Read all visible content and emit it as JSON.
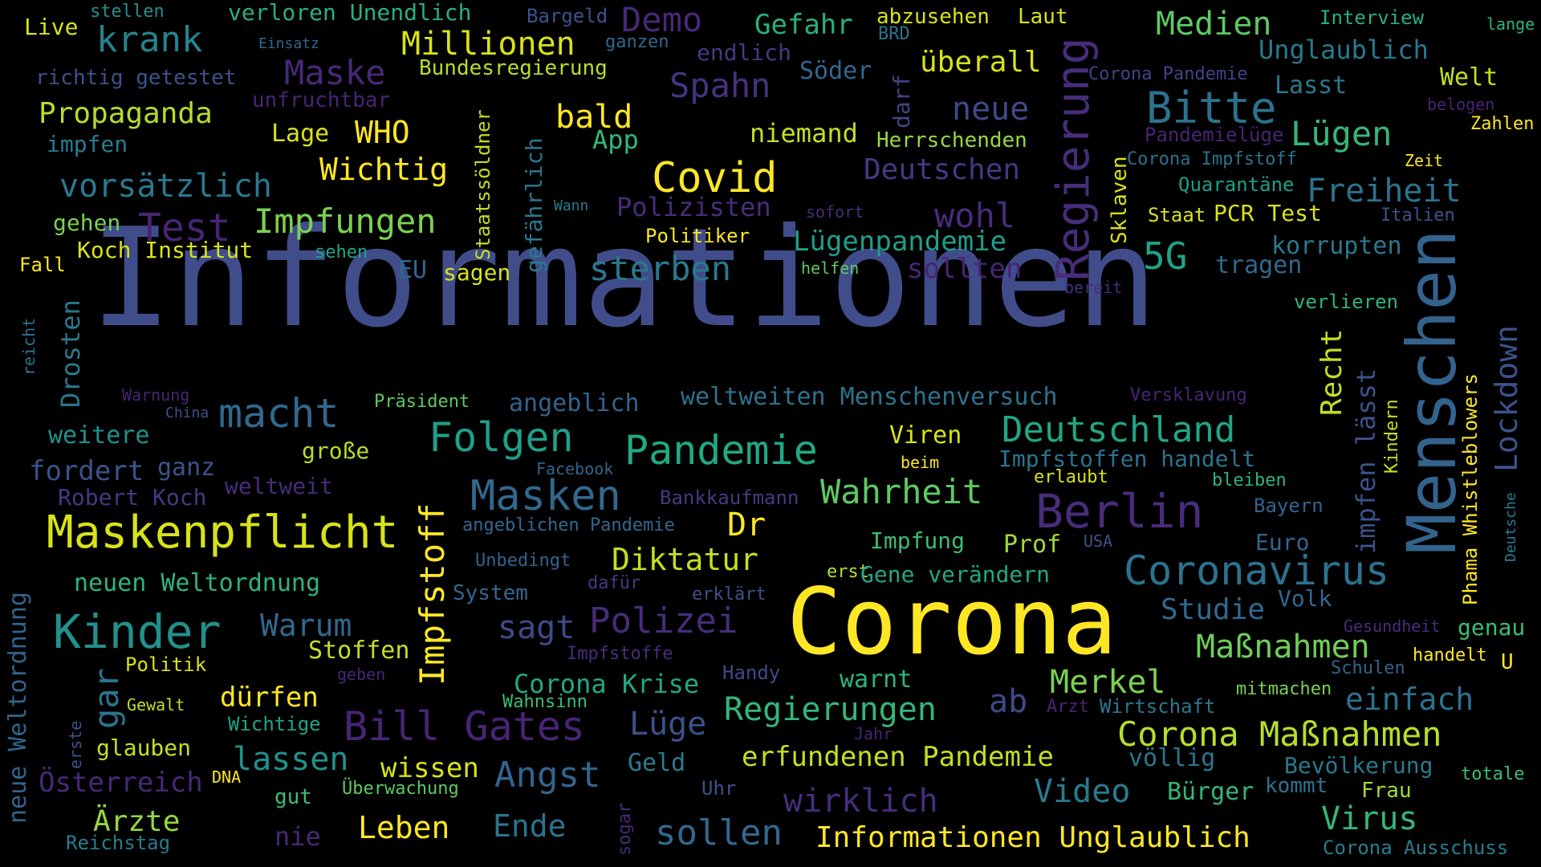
{
  "wordcloud": {
    "words": [
      {
        "text": "Informationen",
        "color": "#404d8a"
      },
      {
        "text": "Corona",
        "color": "#fde725"
      },
      {
        "text": "Menschen",
        "color": "#33638d"
      },
      {
        "text": "Maskenpflicht",
        "color": "#d8e219"
      },
      {
        "text": "Regierung",
        "color": "#472d7b"
      },
      {
        "text": "Kinder",
        "color": "#21918c"
      },
      {
        "text": "Bitte",
        "color": "#2c728e"
      },
      {
        "text": "Coronavirus",
        "color": "#2c728e"
      },
      {
        "text": "Berlin",
        "color": "#472d7b"
      },
      {
        "text": "Bill Gates",
        "color": "#482475"
      },
      {
        "text": "Deutschland",
        "color": "#21a685"
      },
      {
        "text": "Pandemie",
        "color": "#22a884"
      },
      {
        "text": "Folgen",
        "color": "#1f9e89"
      },
      {
        "text": "Masken",
        "color": "#31688e"
      },
      {
        "text": "Covid",
        "color": "#fde725"
      },
      {
        "text": "Impfstoff",
        "color": "#fde725"
      },
      {
        "text": "macht",
        "color": "#31688e"
      },
      {
        "text": "Lockdown",
        "color": "#3b528b"
      },
      {
        "text": "Corona Maßnahmen",
        "color": "#b5de2b"
      },
      {
        "text": "Impfungen",
        "color": "#7ad151"
      },
      {
        "text": "Maske",
        "color": "#482878"
      },
      {
        "text": "Informationen Unglaublich",
        "color": "#fde725"
      },
      {
        "text": "Millionen",
        "color": "#d8e219"
      },
      {
        "text": "krank",
        "color": "#26828e"
      },
      {
        "text": "Wahrheit",
        "color": "#5ec962"
      },
      {
        "text": "Regierungen",
        "color": "#35b779"
      },
      {
        "text": "Maßnahmen",
        "color": "#6ece58"
      },
      {
        "text": "Polizei",
        "color": "#472d7b"
      },
      {
        "text": "sterben",
        "color": "#2a788e"
      },
      {
        "text": "Freiheit",
        "color": "#2c728e"
      },
      {
        "text": "Lügen",
        "color": "#35b779"
      },
      {
        "text": "Demo",
        "color": "#482878"
      },
      {
        "text": "Gefahr",
        "color": "#29af7f"
      },
      {
        "text": "Medien",
        "color": "#5ec962"
      },
      {
        "text": "Spahn",
        "color": "#46327e"
      },
      {
        "text": "neue",
        "color": "#3e4a89"
      },
      {
        "text": "wohl",
        "color": "#472d7b"
      },
      {
        "text": "5G",
        "color": "#20a386"
      },
      {
        "text": "Test",
        "color": "#482475"
      },
      {
        "text": "vorsätzlich",
        "color": "#2a788e"
      },
      {
        "text": "Wichtig",
        "color": "#fde725"
      },
      {
        "text": "bald",
        "color": "#fde725"
      },
      {
        "text": "WHO",
        "color": "#fde725"
      },
      {
        "text": "Deutschen",
        "color": "#443983"
      },
      {
        "text": "Merkel",
        "color": "#7ad151"
      },
      {
        "text": "einfach",
        "color": "#2c728e"
      },
      {
        "text": "Virus",
        "color": "#35b779"
      },
      {
        "text": "Video",
        "color": "#287c8e"
      },
      {
        "text": "wirklich",
        "color": "#472d7b"
      },
      {
        "text": "sollen",
        "color": "#31688e"
      },
      {
        "text": "Angst",
        "color": "#33638d"
      },
      {
        "text": "Warum",
        "color": "#31688e"
      },
      {
        "text": "sagt",
        "color": "#3e4a89"
      },
      {
        "text": "Diktatur",
        "color": "#c2df23"
      },
      {
        "text": "Dr",
        "color": "#fde725"
      },
      {
        "text": "ab",
        "color": "#3e4a89"
      },
      {
        "text": "Lüge",
        "color": "#3b528b"
      },
      {
        "text": "lassen",
        "color": "#21918c"
      },
      {
        "text": "Ärzte",
        "color": "#95d840"
      },
      {
        "text": "Leben",
        "color": "#fde725"
      },
      {
        "text": "Ende",
        "color": "#2c728e"
      },
      {
        "text": "Österreich",
        "color": "#482878"
      },
      {
        "text": "Corona Krise",
        "color": "#22a884"
      },
      {
        "text": "erfundenen Pandemie",
        "color": "#c2df23"
      },
      {
        "text": "Studie",
        "color": "#31688e"
      },
      {
        "text": "Recht",
        "color": "#c2df23"
      },
      {
        "text": "impfen lässt",
        "color": "#3b528b"
      },
      {
        "text": "Propaganda",
        "color": "#b5de2b"
      },
      {
        "text": "Drosten",
        "color": "#2a788e"
      },
      {
        "text": "gar",
        "color": "#2c728e"
      },
      {
        "text": "neue Weltordnung",
        "color": "#33638d"
      },
      {
        "text": "Impfstoffen handelt",
        "color": "#2c728e"
      },
      {
        "text": "Lügenpandemie",
        "color": "#1f9e89"
      },
      {
        "text": "Polizisten",
        "color": "#472d7b"
      },
      {
        "text": "sollten",
        "color": "#482475"
      },
      {
        "text": "tragen",
        "color": "#31688e"
      },
      {
        "text": "korrupten",
        "color": "#2a788e"
      },
      {
        "text": "niemand",
        "color": "#c2df23"
      },
      {
        "text": "überall",
        "color": "#d8e219"
      },
      {
        "text": "Unglaublich",
        "color": "#2a788e"
      },
      {
        "text": "weltweiten Menschenversuch",
        "color": "#2c728e"
      },
      {
        "text": "Viren",
        "color": "#d8e219"
      },
      {
        "text": "Impfung",
        "color": "#3dbc74"
      },
      {
        "text": "Prof",
        "color": "#a0da39"
      },
      {
        "text": "angeblich",
        "color": "#33638d"
      },
      {
        "text": "Koch Institut",
        "color": "#d8e219"
      },
      {
        "text": "Lage",
        "color": "#d8e219"
      },
      {
        "text": "weitere",
        "color": "#21918c"
      },
      {
        "text": "fordert",
        "color": "#3b528b"
      },
      {
        "text": "ganz",
        "color": "#3b528b"
      },
      {
        "text": "große",
        "color": "#b5de2b"
      },
      {
        "text": "Robert Koch",
        "color": "#443983"
      },
      {
        "text": "weltweit",
        "color": "#472d7b"
      },
      {
        "text": "neuen Weltordnung",
        "color": "#2fb47c"
      },
      {
        "text": "Stoffen",
        "color": "#c2df23"
      },
      {
        "text": "dürfen",
        "color": "#fde725"
      },
      {
        "text": "glauben",
        "color": "#c2df23"
      },
      {
        "text": "wissen",
        "color": "#d8e219"
      },
      {
        "text": "Geld",
        "color": "#287c8e"
      },
      {
        "text": "warnt",
        "color": "#2fb47c"
      },
      {
        "text": "völlig",
        "color": "#2a788e"
      },
      {
        "text": "Bürger",
        "color": "#35b779"
      },
      {
        "text": "Bevölkerung",
        "color": "#2a788e"
      },
      {
        "text": "EU",
        "color": "#31688e"
      },
      {
        "text": "sagen",
        "color": "#d8e219"
      },
      {
        "text": "gehen",
        "color": "#7ad151"
      },
      {
        "text": "App",
        "color": "#35b779"
      },
      {
        "text": "Politiker",
        "color": "#fde725"
      },
      {
        "text": "Staatssöldner",
        "color": "#c2df23"
      },
      {
        "text": "gefährlich",
        "color": "#2a788e"
      },
      {
        "text": "Sklaven",
        "color": "#d8e219"
      },
      {
        "text": "Kindern",
        "color": "#c2df23"
      },
      {
        "text": "Phama Whistleblowers",
        "color": "#fde725"
      },
      {
        "text": "Söder",
        "color": "#31688e"
      },
      {
        "text": "darf",
        "color": "#414487"
      },
      {
        "text": "Live",
        "color": "#d8e219"
      },
      {
        "text": "richtig getestet",
        "color": "#3b528b"
      },
      {
        "text": "Bundesregierung",
        "color": "#b5de2b"
      },
      {
        "text": "unfruchtbar",
        "color": "#482475"
      },
      {
        "text": "impfen",
        "color": "#287c8e"
      },
      {
        "text": "Herrschenden",
        "color": "#95d840"
      },
      {
        "text": "Lasst",
        "color": "#2a788e"
      },
      {
        "text": "Welt",
        "color": "#c2df23"
      },
      {
        "text": "Zahlen",
        "color": "#fde725"
      },
      {
        "text": "Quarantäne",
        "color": "#1f9e89"
      },
      {
        "text": "PCR Test",
        "color": "#d8e219"
      },
      {
        "text": "Staat",
        "color": "#d8e219"
      },
      {
        "text": "verlieren",
        "color": "#2fb47c"
      },
      {
        "text": "Bayern",
        "color": "#33638d"
      },
      {
        "text": "bleiben",
        "color": "#2fb47c"
      },
      {
        "text": "Euro",
        "color": "#31688e"
      },
      {
        "text": "Volk",
        "color": "#31688e"
      },
      {
        "text": "genau",
        "color": "#3dbc74"
      },
      {
        "text": "handelt",
        "color": "#fde725"
      },
      {
        "text": "U",
        "color": "#fde725"
      },
      {
        "text": "Schulen",
        "color": "#33638d"
      },
      {
        "text": "mitmachen",
        "color": "#7ad151"
      },
      {
        "text": "Wirtschaft",
        "color": "#2a788e"
      },
      {
        "text": "Arzt",
        "color": "#482475"
      },
      {
        "text": "kommt",
        "color": "#2c728e"
      },
      {
        "text": "Frau",
        "color": "#a0da39"
      },
      {
        "text": "totale",
        "color": "#3dbc74"
      },
      {
        "text": "Corona Ausschuss",
        "color": "#287c8e"
      },
      {
        "text": "Gesundheit",
        "color": "#472d7b"
      },
      {
        "text": "Deutsche",
        "color": "#287c8e"
      },
      {
        "text": "Interview",
        "color": "#29af7f"
      },
      {
        "text": "lange",
        "color": "#2fb47c"
      },
      {
        "text": "belogen",
        "color": "#482475"
      },
      {
        "text": "Zeit",
        "color": "#fde725"
      },
      {
        "text": "Italien",
        "color": "#3b528b"
      },
      {
        "text": "Corona Impfstoff",
        "color": "#2c728e"
      },
      {
        "text": "Pandemielüge",
        "color": "#482475"
      },
      {
        "text": "Corona Pandemie",
        "color": "#414487"
      },
      {
        "text": "abzusehen",
        "color": "#d8e219"
      },
      {
        "text": "Laut",
        "color": "#d8e219"
      },
      {
        "text": "BRD",
        "color": "#2c728e"
      },
      {
        "text": "endlich",
        "color": "#443983"
      },
      {
        "text": "ganzen",
        "color": "#31688e"
      },
      {
        "text": "Bargeld",
        "color": "#3b528b"
      },
      {
        "text": "verloren Unendlich",
        "color": "#29af7f"
      },
      {
        "text": "stellen",
        "color": "#21918c"
      },
      {
        "text": "Einsatz",
        "color": "#31688e"
      },
      {
        "text": "sofort",
        "color": "#472d7b"
      },
      {
        "text": "helfen",
        "color": "#5ec962"
      },
      {
        "text": "Wann",
        "color": "#287c8e"
      },
      {
        "text": "sehen",
        "color": "#22a884"
      },
      {
        "text": "Fall",
        "color": "#fde725"
      },
      {
        "text": "bereit",
        "color": "#472d7b"
      },
      {
        "text": "reicht",
        "color": "#2c728e"
      },
      {
        "text": "Warnung",
        "color": "#482475"
      },
      {
        "text": "China",
        "color": "#3b528b"
      },
      {
        "text": "Präsident",
        "color": "#5ec962"
      },
      {
        "text": "Facebook",
        "color": "#33638d"
      },
      {
        "text": "beim",
        "color": "#fde725"
      },
      {
        "text": "erlaubt",
        "color": "#d8e219"
      },
      {
        "text": "Versklavung",
        "color": "#482475"
      },
      {
        "text": "Bankkaufmann",
        "color": "#443983"
      },
      {
        "text": "angeblichen Pandemie",
        "color": "#31688e"
      },
      {
        "text": "USA",
        "color": "#3b528b"
      },
      {
        "text": "Unbedingt",
        "color": "#33638d"
      },
      {
        "text": "System",
        "color": "#31688e"
      },
      {
        "text": "dafür",
        "color": "#443983"
      },
      {
        "text": "erklärt",
        "color": "#3b528b"
      },
      {
        "text": "erst",
        "color": "#b5de2b"
      },
      {
        "text": "Gene verändern",
        "color": "#22a884"
      },
      {
        "text": "Impfstoffe",
        "color": "#472d7b"
      },
      {
        "text": "Handy",
        "color": "#3e4a89"
      },
      {
        "text": "Wahnsinn",
        "color": "#3dbc74"
      },
      {
        "text": "geben",
        "color": "#482475"
      },
      {
        "text": "Politik",
        "color": "#d8e219"
      },
      {
        "text": "Gewalt",
        "color": "#c2df23"
      },
      {
        "text": "Wichtige",
        "color": "#20a386"
      },
      {
        "text": "erste",
        "color": "#3b528b"
      },
      {
        "text": "DNA",
        "color": "#fde725"
      },
      {
        "text": "gut",
        "color": "#3dbc74"
      },
      {
        "text": "Überwachung",
        "color": "#5ec962"
      },
      {
        "text": "Uhr",
        "color": "#3b528b"
      },
      {
        "text": "Jahr",
        "color": "#482475"
      },
      {
        "text": "nie",
        "color": "#482878"
      },
      {
        "text": "Reichstag",
        "color": "#287c8e"
      },
      {
        "text": "sogar",
        "color": "#482878"
      }
    ]
  }
}
